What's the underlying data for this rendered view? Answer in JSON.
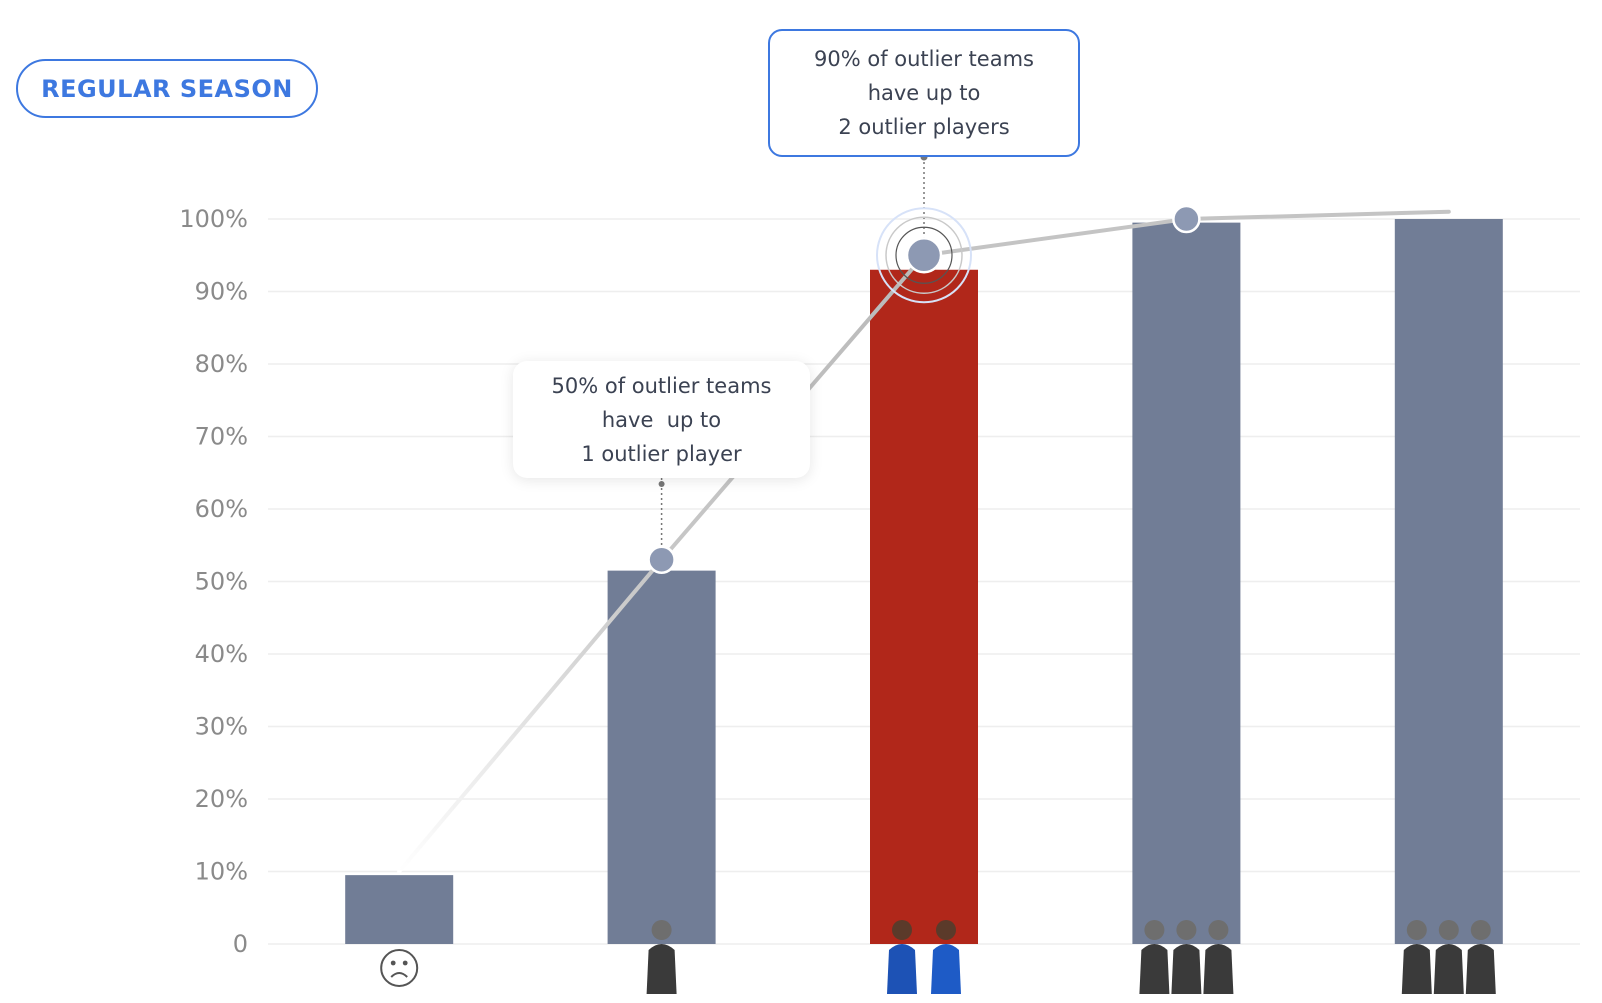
{
  "badge": {
    "label": "REGULAR SEASON"
  },
  "callouts": [
    {
      "lines": [
        "90% of outlier teams",
        "have up to",
        "2 outlier players"
      ]
    },
    {
      "lines": [
        "50% of outlier teams",
        "have  up to",
        "1 outlier player"
      ]
    }
  ],
  "colors": {
    "bar": "#717d96",
    "highlight": "#b1271a",
    "accent": "#3d78e0",
    "line": "#c8c8c8",
    "marker": "#8d99b3"
  },
  "chart_data": {
    "type": "bar",
    "categories": [
      "0 outlier players",
      "1 outlier player",
      "2 outlier players",
      "3 outlier players",
      "4 outlier players"
    ],
    "category_icons": [
      "sad-face-icon",
      "player-photo-icon",
      "player-photo-icon",
      "player-photo-icon",
      "player-photo-icon"
    ],
    "values": [
      9.5,
      51.5,
      93,
      99.5,
      100
    ],
    "highlight_index": 2,
    "cumulative_line": {
      "points": [
        {
          "category": "0 outlier players",
          "value": 10
        },
        {
          "category": "1 outlier player",
          "value": 53
        },
        {
          "category": "2 outlier players",
          "value": 95
        },
        {
          "category": "3 outlier players",
          "value": 100
        },
        {
          "category": "4 outlier players",
          "value": 101
        }
      ],
      "markers_at": [
        1,
        2,
        3
      ]
    },
    "ylim": [
      0,
      100
    ],
    "yticks": [
      0,
      10,
      20,
      30,
      40,
      50,
      60,
      70,
      80,
      90,
      100
    ],
    "ytick_labels": [
      "0",
      "10%",
      "20%",
      "30%",
      "40%",
      "50%",
      "60%",
      "70%",
      "80%",
      "90%",
      "100%"
    ],
    "grid": true,
    "title": "",
    "xlabel": "",
    "ylabel": ""
  }
}
